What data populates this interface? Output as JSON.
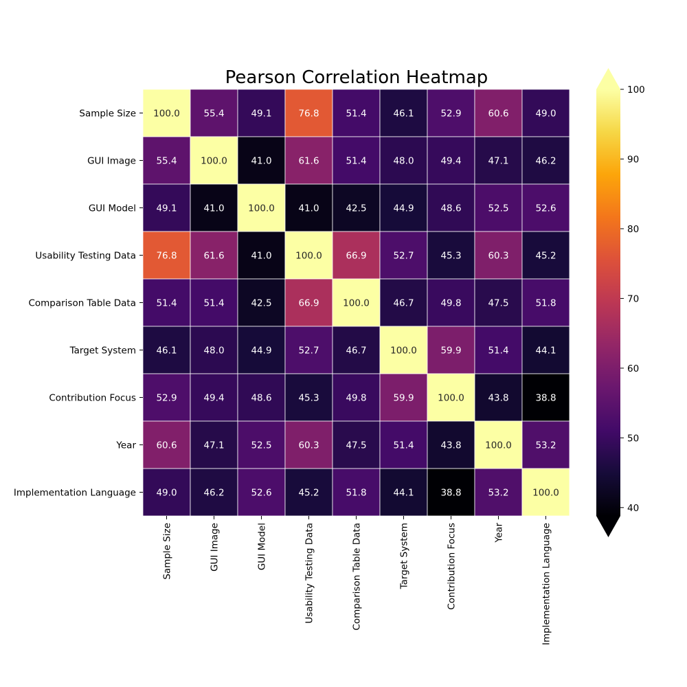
{
  "chart_data": {
    "type": "heatmap",
    "title": "Pearson Correlation Heatmap",
    "colormap": "inferno",
    "row_labels": [
      "Sample Size",
      "GUI Image",
      "GUI Model",
      "Usability Testing Data",
      "Comparison Table Data",
      "Target System",
      "Contribution Focus",
      "Year",
      "Implementation Language"
    ],
    "col_labels": [
      "Sample Size",
      "GUI Image",
      "GUI Model",
      "Usability Testing Data",
      "Comparison Table Data",
      "Target System",
      "Contribution Focus",
      "Year",
      "Implementation Language"
    ],
    "values": [
      [
        100.0,
        55.4,
        49.1,
        76.8,
        51.4,
        46.1,
        52.9,
        60.6,
        49.0
      ],
      [
        55.4,
        100.0,
        41.0,
        61.6,
        51.4,
        48.0,
        49.4,
        47.1,
        46.2
      ],
      [
        49.1,
        41.0,
        100.0,
        41.0,
        42.5,
        44.9,
        48.6,
        52.5,
        52.6
      ],
      [
        76.8,
        61.6,
        41.0,
        100.0,
        66.9,
        52.7,
        45.3,
        60.3,
        45.2
      ],
      [
        51.4,
        51.4,
        42.5,
        66.9,
        100.0,
        46.7,
        49.8,
        47.5,
        51.8
      ],
      [
        46.1,
        48.0,
        44.9,
        52.7,
        46.7,
        100.0,
        59.9,
        51.4,
        44.1
      ],
      [
        52.9,
        49.4,
        48.6,
        45.3,
        49.8,
        59.9,
        100.0,
        43.8,
        38.8
      ],
      [
        60.6,
        47.1,
        52.5,
        60.3,
        47.5,
        51.4,
        43.8,
        100.0,
        53.2
      ],
      [
        49.0,
        46.2,
        52.6,
        45.2,
        51.8,
        44.1,
        38.8,
        53.2,
        100.0
      ]
    ],
    "value_format": "0.1f",
    "colorbar": {
      "range": [
        38.8,
        100
      ],
      "ticks": [
        "40",
        "50",
        "60",
        "70",
        "80",
        "90",
        "100"
      ],
      "extend": "both"
    }
  }
}
